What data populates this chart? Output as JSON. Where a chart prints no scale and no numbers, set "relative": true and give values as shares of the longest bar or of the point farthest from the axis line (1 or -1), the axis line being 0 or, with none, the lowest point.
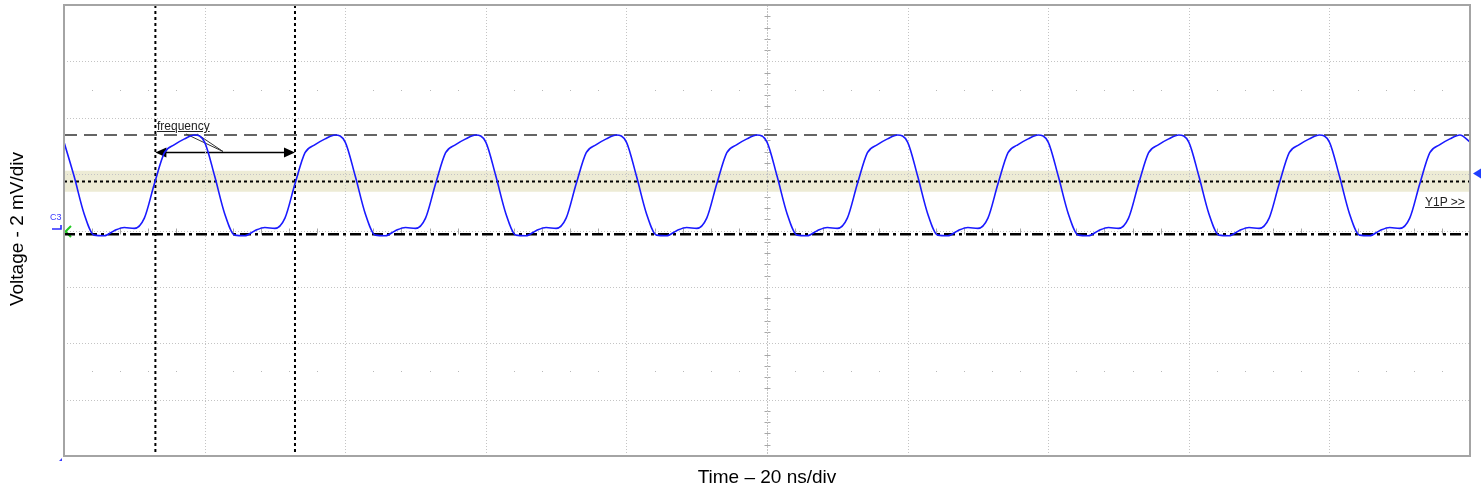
{
  "chart_data": {
    "type": "line",
    "relative": true,
    "xlabel": "Time – 20 ns/div",
    "ylabel": "Voltage - 2 mV/div",
    "grid": true,
    "categories": [
      null,
      null,
      null,
      null,
      null,
      null,
      null,
      null,
      null,
      null,
      null,
      null,
      null,
      null,
      null,
      null,
      null,
      null,
      null,
      null,
      null,
      null,
      null,
      null,
      null,
      null,
      null,
      null,
      null,
      null,
      null,
      null,
      null,
      null,
      null,
      null,
      null,
      null,
      null,
      null,
      null,
      null,
      null,
      null,
      null,
      null,
      null,
      null,
      null,
      null,
      null,
      null,
      null,
      null,
      null,
      null,
      null,
      null,
      null,
      null,
      null,
      null,
      null,
      null,
      null,
      null,
      null,
      null,
      null,
      null,
      null,
      null,
      null,
      null,
      null,
      null,
      null,
      null,
      null,
      null,
      null,
      null,
      null,
      null,
      null,
      null,
      null,
      null,
      null,
      null,
      null,
      null,
      null,
      null,
      null,
      null,
      null,
      null,
      null,
      null,
      null,
      null,
      null,
      null,
      null,
      null,
      null,
      null,
      null,
      null,
      null,
      null,
      null,
      null,
      null,
      null,
      null,
      null,
      null,
      null,
      null,
      null,
      null,
      null,
      null,
      null,
      null,
      null,
      null,
      null,
      null,
      null,
      null,
      null,
      null,
      null,
      null,
      null,
      null,
      null,
      null
    ],
    "series": [
      {
        "color": "#1a1aff",
        "values": [
          0.978,
          0.872,
          0.755,
          0.688,
          0.686,
          0.702,
          0.712,
          0.709,
          0.741,
          0.848,
          0.945,
          0.97,
          0.988,
          1.0,
          0.978,
          0.872,
          0.755,
          0.688,
          0.686,
          0.702,
          0.712,
          0.709,
          0.741,
          0.848,
          0.945,
          0.97,
          0.988,
          1.0,
          0.978,
          0.872,
          0.755,
          0.688,
          0.686,
          0.702,
          0.712,
          0.709,
          0.741,
          0.848,
          0.945,
          0.97,
          0.988,
          1.0,
          0.978,
          0.872,
          0.755,
          0.688,
          0.686,
          0.702,
          0.712,
          0.709,
          0.741,
          0.848,
          0.945,
          0.97,
          0.988,
          1.0,
          0.978,
          0.872,
          0.755,
          0.688,
          0.686,
          0.702,
          0.712,
          0.709,
          0.741,
          0.848,
          0.945,
          0.97,
          0.988,
          1.0,
          0.978,
          0.872,
          0.755,
          0.688,
          0.686,
          0.702,
          0.712,
          0.709,
          0.741,
          0.848,
          0.945,
          0.97,
          0.988,
          1.0,
          0.978,
          0.872,
          0.755,
          0.688,
          0.686,
          0.702,
          0.712,
          0.709,
          0.741,
          0.848,
          0.945,
          0.97,
          0.988,
          1.0,
          0.978,
          0.872,
          0.755,
          0.688,
          0.686,
          0.702,
          0.712,
          0.709,
          0.741,
          0.848,
          0.945,
          0.97,
          0.988,
          1.0,
          0.978,
          0.872,
          0.755,
          0.688,
          0.686,
          0.702,
          0.712,
          0.709,
          0.741,
          0.848,
          0.945,
          0.97,
          0.988,
          1.0,
          0.978,
          0.872,
          0.755,
          0.688,
          0.686,
          0.702,
          0.712,
          0.709,
          0.741,
          0.848,
          0.945,
          0.97,
          0.988,
          1.0,
          0.978
        ]
      }
    ],
    "ref_lines": [
      {
        "axis": "y",
        "value": 1.0,
        "line_style": "dashed",
        "color": "#333333"
      },
      {
        "axis": "y",
        "value": 0.855,
        "line_style": "dotted",
        "color": "#000000"
      },
      {
        "axis": "y",
        "value": 0.691,
        "line_style": "dashdot",
        "color": "#000000"
      }
    ],
    "bands": [
      {
        "axis": "y",
        "from": 0.823,
        "to": 0.889,
        "color": "#edebd5"
      }
    ],
    "annotations": [
      "frequency",
      "C3",
      "Y1P >>"
    ]
  }
}
